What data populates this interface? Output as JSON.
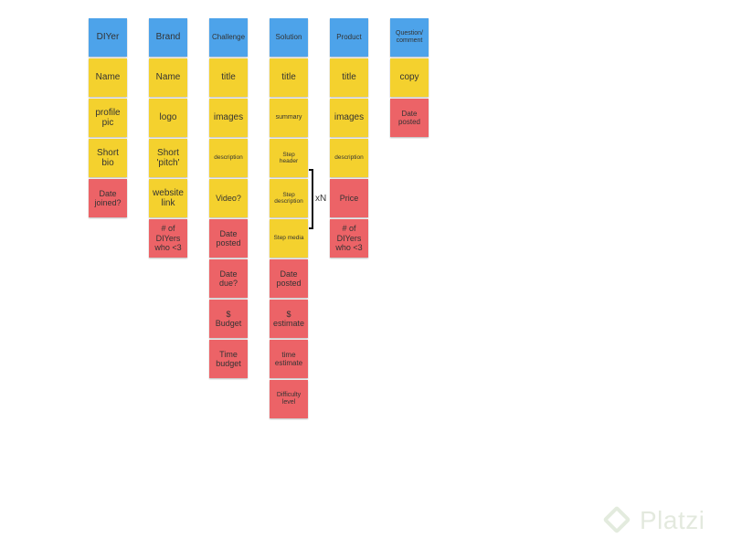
{
  "columns": [
    {
      "id": "diyer",
      "notes": [
        {
          "text": "DIYer",
          "color": "blue",
          "size": "f10"
        },
        {
          "text": "Name",
          "color": "yellow",
          "size": "f10"
        },
        {
          "text": "profile\npic",
          "color": "yellow",
          "size": "f10"
        },
        {
          "text": "Short\nbio",
          "color": "yellow",
          "size": "f10"
        },
        {
          "text": "Date\njoined?",
          "color": "red",
          "size": "f9"
        }
      ]
    },
    {
      "id": "brand",
      "notes": [
        {
          "text": "Brand",
          "color": "blue",
          "size": "f10"
        },
        {
          "text": "Name",
          "color": "yellow",
          "size": "f10"
        },
        {
          "text": "logo",
          "color": "yellow",
          "size": "f10"
        },
        {
          "text": "Short\n'pitch'",
          "color": "yellow",
          "size": "f10"
        },
        {
          "text": "website\nlink",
          "color": "yellow",
          "size": "f10"
        },
        {
          "text": "# of\nDIYers\nwho <3",
          "color": "red",
          "size": "f9"
        }
      ]
    },
    {
      "id": "challenge",
      "notes": [
        {
          "text": "Challenge",
          "color": "blue",
          "size": "f8"
        },
        {
          "text": "title",
          "color": "yellow",
          "size": "f10"
        },
        {
          "text": "images",
          "color": "yellow",
          "size": "f10"
        },
        {
          "text": "description",
          "color": "yellow",
          "size": "f6"
        },
        {
          "text": "Video?",
          "color": "yellow",
          "size": "f9"
        },
        {
          "text": "Date\nposted",
          "color": "red",
          "size": "f9"
        },
        {
          "text": "Date\ndue?",
          "color": "red",
          "size": "f9"
        },
        {
          "text": "$\nBudget",
          "color": "red",
          "size": "f9"
        },
        {
          "text": "Time\nbudget",
          "color": "red",
          "size": "f9"
        }
      ]
    },
    {
      "id": "solution",
      "notes": [
        {
          "text": "Solution",
          "color": "blue",
          "size": "f8"
        },
        {
          "text": "title",
          "color": "yellow",
          "size": "f10"
        },
        {
          "text": "summary",
          "color": "yellow",
          "size": "f7"
        },
        {
          "text": "Step\nheader",
          "color": "yellow",
          "size": "f6"
        },
        {
          "text": "Step\ndescription",
          "color": "yellow",
          "size": "f6"
        },
        {
          "text": "Step media",
          "color": "yellow",
          "size": "f6"
        },
        {
          "text": "Date\nposted",
          "color": "red",
          "size": "f9"
        },
        {
          "text": "$\nestimate",
          "color": "red",
          "size": "f9"
        },
        {
          "text": "time\nestimate",
          "color": "red",
          "size": "f8"
        },
        {
          "text": "Difficulty\nlevel",
          "color": "red",
          "size": "f7"
        }
      ]
    },
    {
      "id": "product",
      "notes": [
        {
          "text": "Product",
          "color": "blue",
          "size": "f8"
        },
        {
          "text": "title",
          "color": "yellow",
          "size": "f10"
        },
        {
          "text": "images",
          "color": "yellow",
          "size": "f10"
        },
        {
          "text": "description",
          "color": "yellow",
          "size": "f6"
        },
        {
          "text": "Price",
          "color": "red",
          "size": "f9"
        },
        {
          "text": "# of\nDIYers\nwho <3",
          "color": "red",
          "size": "f9"
        }
      ]
    },
    {
      "id": "question",
      "notes": [
        {
          "text": "Question/\ncomment",
          "color": "blue",
          "size": "f7"
        },
        {
          "text": "copy",
          "color": "yellow",
          "size": "f10"
        },
        {
          "text": "Date\nposted",
          "color": "red",
          "size": "f8"
        }
      ]
    }
  ],
  "bracket_label": "xN",
  "watermark": "Platzi"
}
